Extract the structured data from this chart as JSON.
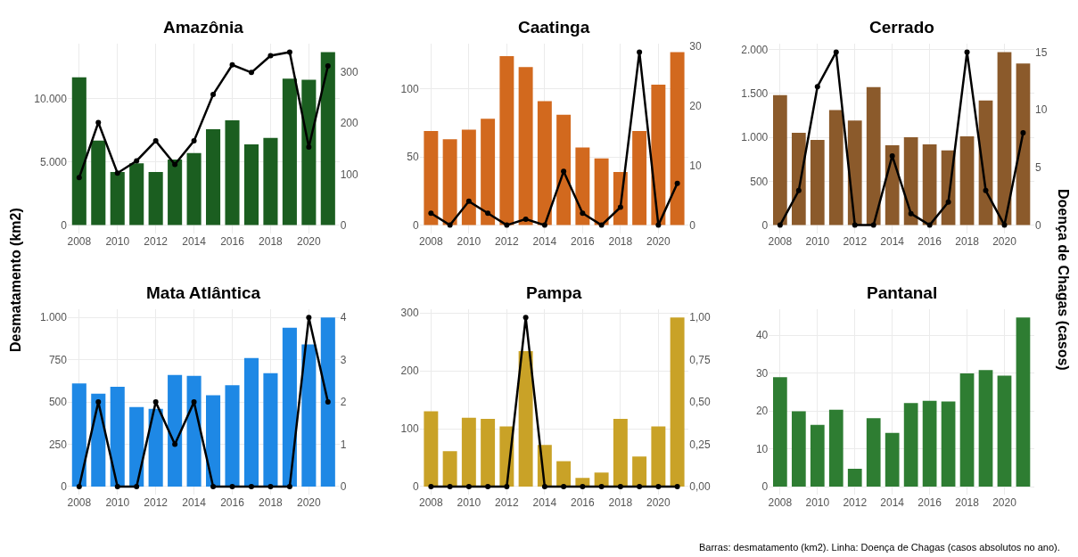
{
  "chart_data": [
    {
      "type": "bar",
      "title": "Amazônia",
      "x": [
        2008,
        2009,
        2010,
        2011,
        2012,
        2013,
        2014,
        2015,
        2016,
        2017,
        2018,
        2019,
        2020,
        2021
      ],
      "xlim": [
        2007.4,
        2021.6
      ],
      "xticks": [
        2008,
        2010,
        2012,
        2014,
        2016,
        2018,
        2020
      ],
      "ylim": [
        -685,
        14385
      ],
      "yticks": [
        0,
        {
          "value": 5000,
          "label": "5.000"
        },
        {
          "value": 10000,
          "label": "10.000"
        }
      ],
      "y2lim": [
        -17,
        356
      ],
      "y2ticks": [
        0,
        100,
        200,
        300
      ],
      "grid": true,
      "marker": "circle",
      "ylabel": "Desmatamento (km2)",
      "series": [
        {
          "color": "#1b5e20",
          "values": [
            11700,
            6700,
            4200,
            4900,
            4200,
            5200,
            5700,
            7600,
            8300,
            6400,
            6900,
            11600,
            11500,
            13700
          ]
        },
        {
          "type": "line",
          "axis": "y2",
          "color": "#000000",
          "values": [
            93,
            201,
            102,
            126,
            165,
            119,
            165,
            256,
            314,
            299,
            332,
            339,
            153,
            312
          ]
        }
      ]
    },
    {
      "type": "bar",
      "title": "Caatinga",
      "x": [
        2008,
        2009,
        2010,
        2011,
        2012,
        2013,
        2014,
        2015,
        2016,
        2017,
        2018,
        2019,
        2020,
        2021
      ],
      "xlim": [
        2007.4,
        2021.6
      ],
      "xticks": [
        2008,
        2010,
        2012,
        2014,
        2016,
        2018,
        2020
      ],
      "ylim": [
        -6.35,
        133.35
      ],
      "yticks": [
        0,
        50,
        100
      ],
      "y2lim": [
        -1.45,
        30.45
      ],
      "y2ticks": [
        0,
        10,
        20,
        30
      ],
      "grid": true,
      "marker": "circle",
      "series": [
        {
          "color": "#d2691e",
          "values": [
            69,
            63,
            70,
            78,
            124,
            116,
            91,
            81,
            57,
            49,
            39,
            69,
            103,
            127
          ]
        },
        {
          "type": "line",
          "axis": "y2",
          "color": "#000000",
          "values": [
            2,
            0,
            4,
            2,
            0,
            1,
            0,
            9,
            2,
            0,
            3,
            29,
            0,
            7
          ]
        }
      ]
    },
    {
      "type": "bar",
      "title": "Cerrado",
      "x": [
        2008,
        2009,
        2010,
        2011,
        2012,
        2013,
        2014,
        2015,
        2016,
        2017,
        2018,
        2019,
        2020,
        2021
      ],
      "xlim": [
        2007.4,
        2021.6
      ],
      "xticks": [
        2008,
        2010,
        2012,
        2014,
        2016,
        2018,
        2020
      ],
      "ylim": [
        -98.5,
        2068.5
      ],
      "yticks": [
        0,
        500,
        {
          "value": 1000,
          "label": "1.000"
        },
        {
          "value": 1500,
          "label": "1.500"
        },
        {
          "value": 2000,
          "label": "2.000"
        }
      ],
      "y2lim": [
        -0.75,
        15.75
      ],
      "y2ticks": [
        0,
        5,
        10,
        15
      ],
      "grid": true,
      "marker": "circle",
      "y2label": "Doença de Chagas (casos)",
      "series": [
        {
          "color": "#8b5a2b",
          "values": [
            1480,
            1050,
            970,
            1310,
            1190,
            1570,
            910,
            1000,
            920,
            850,
            1010,
            1420,
            1970,
            1840
          ]
        },
        {
          "type": "line",
          "axis": "y2",
          "color": "#000000",
          "values": [
            0,
            3,
            12,
            15,
            0,
            0,
            6,
            1,
            0,
            2,
            15,
            3,
            0,
            8
          ]
        }
      ]
    },
    {
      "type": "bar",
      "title": "Mata Atlântica",
      "x": [
        2008,
        2009,
        2010,
        2011,
        2012,
        2013,
        2014,
        2015,
        2016,
        2017,
        2018,
        2019,
        2020,
        2021
      ],
      "xlim": [
        2007.4,
        2021.6
      ],
      "xticks": [
        2008,
        2010,
        2012,
        2014,
        2016,
        2018,
        2020
      ],
      "ylim": [
        -50,
        1050
      ],
      "yticks": [
        0,
        250,
        500,
        750,
        {
          "value": 1000,
          "label": "1.000"
        }
      ],
      "y2lim": [
        -0.2,
        4.2
      ],
      "y2ticks": [
        0,
        1,
        2,
        3,
        4
      ],
      "grid": true,
      "marker": "circle",
      "series": [
        {
          "color": "#1e88e5",
          "values": [
            610,
            550,
            590,
            470,
            460,
            660,
            655,
            540,
            600,
            760,
            670,
            940,
            840,
            1000
          ]
        },
        {
          "type": "line",
          "axis": "y2",
          "color": "#000000",
          "values": [
            0,
            2,
            0,
            0,
            2,
            1,
            2,
            0,
            0,
            0,
            0,
            0,
            4,
            2
          ]
        }
      ]
    },
    {
      "type": "bar",
      "title": "Pampa",
      "x": [
        2008,
        2009,
        2010,
        2011,
        2012,
        2013,
        2014,
        2015,
        2016,
        2017,
        2018,
        2019,
        2020,
        2021
      ],
      "xlim": [
        2007.4,
        2021.6
      ],
      "xticks": [
        2008,
        2010,
        2012,
        2014,
        2016,
        2018,
        2020
      ],
      "ylim": [
        -14.6,
        306.6
      ],
      "yticks": [
        0,
        100,
        200,
        300
      ],
      "y2lim": [
        -0.05,
        1.05
      ],
      "y2ticks": [
        {
          "value": 0,
          "label": "0,00"
        },
        {
          "value": 0.25,
          "label": "0,25"
        },
        {
          "value": 0.5,
          "label": "0,50"
        },
        {
          "value": 0.75,
          "label": "0,75"
        },
        {
          "value": 1,
          "label": "1,00"
        }
      ],
      "grid": true,
      "marker": "circle",
      "series": [
        {
          "color": "#c9a227",
          "values": [
            130,
            61,
            119,
            117,
            104,
            234,
            72,
            44,
            15,
            24,
            117,
            52,
            104,
            292
          ]
        },
        {
          "type": "line",
          "axis": "y2",
          "color": "#000000",
          "values": [
            0,
            0,
            0,
            0,
            0,
            1,
            0,
            0,
            0,
            0,
            0,
            0,
            0,
            0
          ]
        }
      ]
    },
    {
      "type": "bar",
      "title": "Pantanal",
      "x": [
        2008,
        2009,
        2010,
        2011,
        2012,
        2013,
        2014,
        2015,
        2016,
        2017,
        2018,
        2019,
        2020,
        2021
      ],
      "xlim": [
        2007.4,
        2021.6
      ],
      "xticks": [
        2008,
        2010,
        2012,
        2014,
        2016,
        2018,
        2020
      ],
      "ylim": [
        -2.2,
        46.9
      ],
      "yticks": [
        0,
        10,
        20,
        30,
        40
      ],
      "grid": true,
      "annotations": [
        "Barras: desmatamento (km2). Linha: Doença de Chagas (casos absolutos no ano)."
      ],
      "series": [
        {
          "color": "#2e7d32",
          "values": [
            28.9,
            19.9,
            16.3,
            20.3,
            4.7,
            18.1,
            14.2,
            22.1,
            22.7,
            22.5,
            29.9,
            30.8,
            29.3,
            44.7
          ]
        }
      ]
    }
  ]
}
